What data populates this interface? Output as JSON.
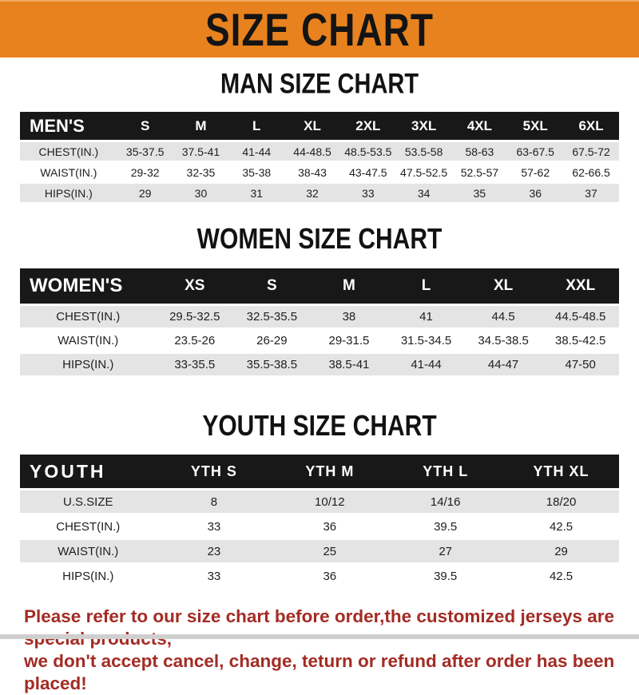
{
  "banner": {
    "title": "SIZE CHART"
  },
  "colors": {
    "banner_bg": "#E8821E",
    "header_bg": "#181818",
    "row_alt_bg": "#E4E4E4",
    "footer_text": "#A32B24"
  },
  "sections": [
    {
      "heading": "MAN SIZE CHART",
      "table": {
        "label": "MEN'S",
        "columns": [
          "S",
          "M",
          "L",
          "XL",
          "2XL",
          "3XL",
          "4XL",
          "5XL",
          "6XL"
        ],
        "rows": [
          {
            "label": "CHEST(IN.)",
            "values": [
              "35-37.5",
              "37.5-41",
              "41-44",
              "44-48.5",
              "48.5-53.5",
              "53.5-58",
              "58-63",
              "63-67.5",
              "67.5-72"
            ]
          },
          {
            "label": "WAIST(IN.)",
            "values": [
              "29-32",
              "32-35",
              "35-38",
              "38-43",
              "43-47.5",
              "47.5-52.5",
              "52.5-57",
              "57-62",
              "62-66.5"
            ]
          },
          {
            "label": "HIPS(IN.)",
            "values": [
              "29",
              "30",
              "31",
              "32",
              "33",
              "34",
              "35",
              "36",
              "37"
            ]
          }
        ]
      }
    },
    {
      "heading": "WOMEN SIZE CHART",
      "table": {
        "label": "WOMEN'S",
        "columns": [
          "XS",
          "S",
          "M",
          "L",
          "XL",
          "XXL"
        ],
        "rows": [
          {
            "label": "CHEST(IN.)",
            "values": [
              "29.5-32.5",
              "32.5-35.5",
              "38",
              "41",
              "44.5",
              "44.5-48.5"
            ]
          },
          {
            "label": "WAIST(IN.)",
            "values": [
              "23.5-26",
              "26-29",
              "29-31.5",
              "31.5-34.5",
              "34.5-38.5",
              "38.5-42.5"
            ]
          },
          {
            "label": "HIPS(IN.)",
            "values": [
              "33-35.5",
              "35.5-38.5",
              "38.5-41",
              "41-44",
              "44-47",
              "47-50"
            ]
          }
        ]
      }
    },
    {
      "heading": "YOUTH SIZE CHART",
      "table": {
        "label": "YOUTH",
        "columns": [
          "YTH S",
          "YTH M",
          "YTH L",
          "YTH XL"
        ],
        "rows": [
          {
            "label": "U.S.SIZE",
            "values": [
              "8",
              "10/12",
              "14/16",
              "18/20"
            ]
          },
          {
            "label": "CHEST(IN.)",
            "values": [
              "33",
              "36",
              "39.5",
              "42.5"
            ]
          },
          {
            "label": "WAIST(IN.)",
            "values": [
              "23",
              "25",
              "27",
              "29"
            ]
          },
          {
            "label": "HIPS(IN.)",
            "values": [
              "33",
              "36",
              "39.5",
              "42.5"
            ]
          }
        ]
      }
    }
  ],
  "footer": {
    "line1": "Please refer to our size chart before order,the customized jerseys are special products,",
    "line2": "we don't accept cancel, change, teturn or refund after order has been placed!"
  }
}
